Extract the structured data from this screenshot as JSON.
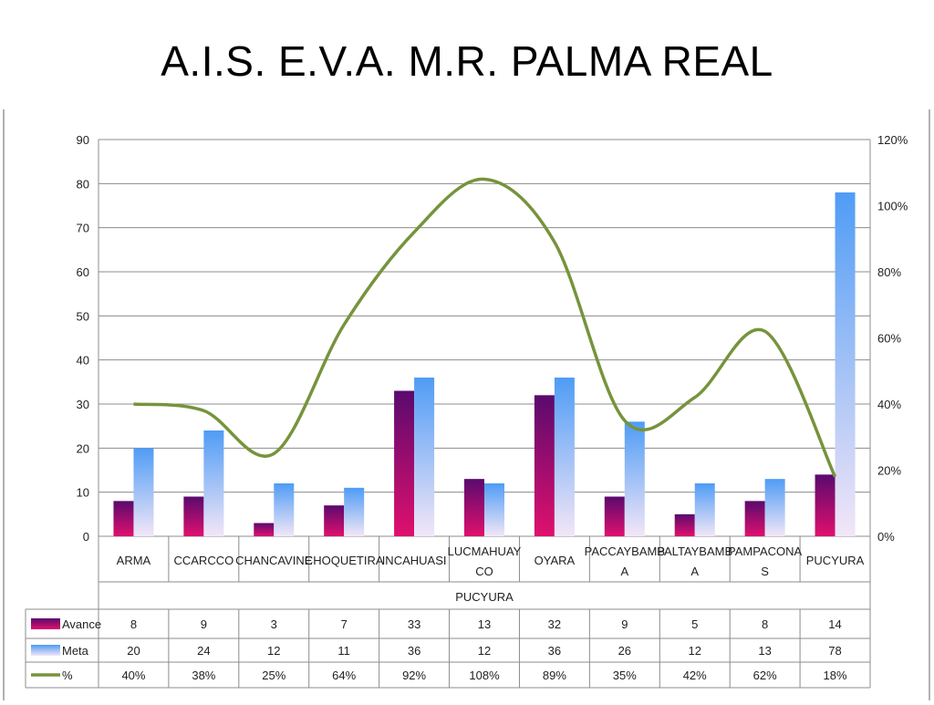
{
  "title": "A.I.S.  E.V.A.  M.R. PALMA REAL",
  "chart_data": {
    "type": "bar",
    "categories": [
      "ARMA",
      "CCARCCO",
      "CHANCAVINE",
      "CHOQUETIRA",
      "INCAHUASI",
      "LUCMAHUAYCO",
      "OYARA",
      "PACCAYBAMBA",
      "PALTAYBAMBA",
      "PAMPACONAS",
      "PUCYURA"
    ],
    "category_lines": [
      [
        "ARMA"
      ],
      [
        "CCARCCO"
      ],
      [
        "CHANCAVINE"
      ],
      [
        "CHOQUETIRA"
      ],
      [
        "INCAHUASI"
      ],
      [
        "LUCMAHUAY",
        "CO"
      ],
      [
        "OYARA"
      ],
      [
        "PACCAYBAMB",
        "A"
      ],
      [
        "PALTAYBAMB",
        "A"
      ],
      [
        "PAMPACONA",
        "S"
      ],
      [
        "PUCYURA"
      ]
    ],
    "group_label": "PUCYURA",
    "series": [
      {
        "name": "Avance",
        "type": "bar",
        "axis": "left",
        "values": [
          8,
          9,
          3,
          7,
          33,
          13,
          32,
          9,
          5,
          8,
          14
        ],
        "color_top": "#5a0a6e",
        "color_bottom": "#e0106e"
      },
      {
        "name": "Meta",
        "type": "bar",
        "axis": "left",
        "values": [
          20,
          24,
          12,
          11,
          36,
          12,
          36,
          26,
          12,
          13,
          78
        ],
        "color_top": "#4f9cf5",
        "color_bottom": "#f3e6f7"
      },
      {
        "name": "%",
        "type": "line",
        "axis": "right",
        "values": [
          40,
          38,
          25,
          64,
          92,
          108,
          89,
          35,
          42,
          62,
          18
        ],
        "color": "#77933c"
      }
    ],
    "table_values": {
      "Avance": [
        "8",
        "9",
        "3",
        "7",
        "33",
        "13",
        "32",
        "9",
        "5",
        "8",
        "14"
      ],
      "Meta": [
        "20",
        "24",
        "12",
        "11",
        "36",
        "12",
        "36",
        "26",
        "12",
        "13",
        "78"
      ],
      "%": [
        "40%",
        "38%",
        "25%",
        "64%",
        "92%",
        "108%",
        "89%",
        "35%",
        "42%",
        "62%",
        "18%"
      ]
    },
    "y_left": {
      "min": 0,
      "max": 90,
      "step": 10,
      "ticks": [
        "0",
        "10",
        "20",
        "30",
        "40",
        "50",
        "60",
        "70",
        "80",
        "90"
      ]
    },
    "y_right": {
      "min": 0,
      "max": 120,
      "step": 20,
      "ticks": [
        "0%",
        "20%",
        "40%",
        "60%",
        "80%",
        "100%",
        "120%"
      ]
    },
    "grid": true,
    "legend": "data-table"
  }
}
